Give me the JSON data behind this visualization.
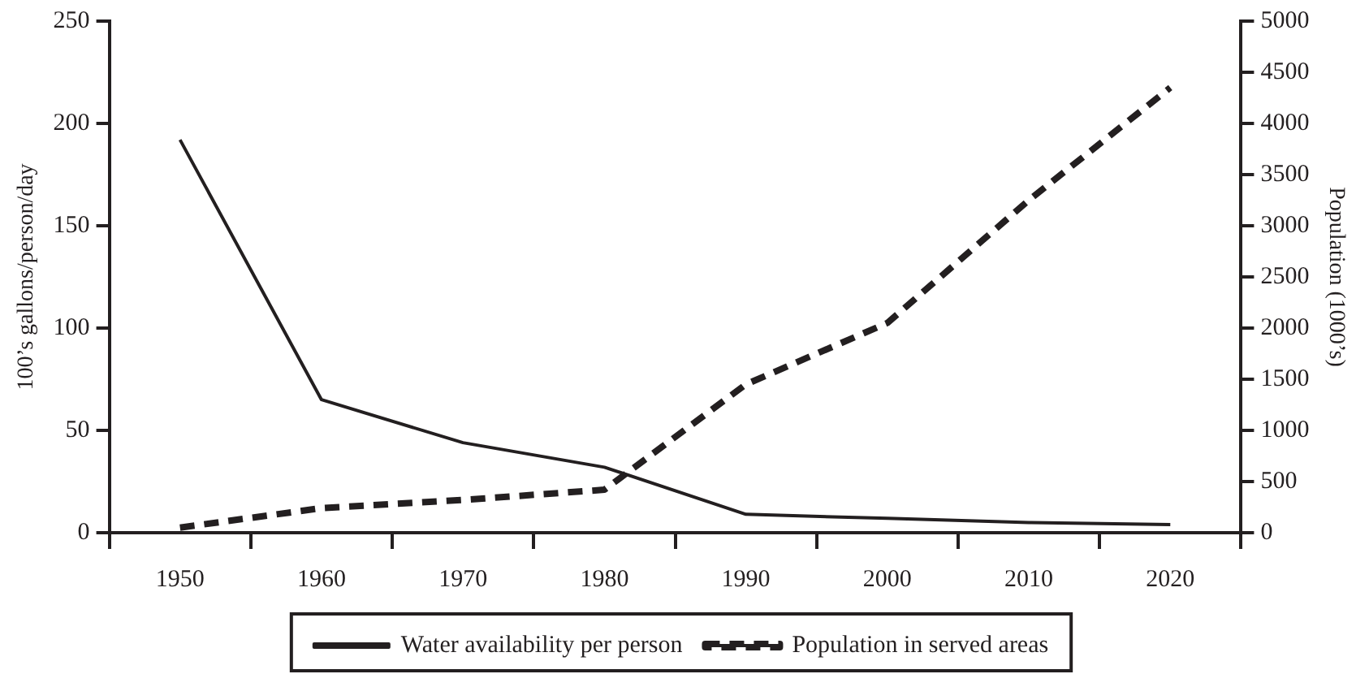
{
  "chart_data": {
    "type": "line",
    "categories": [
      "1950",
      "1960",
      "1970",
      "1980",
      "1990",
      "2000",
      "2010",
      "2020"
    ],
    "ylabel": "100’s gallons/person/day",
    "y2label": "Population (1000’s)",
    "ylim": [
      0,
      250
    ],
    "yticks": [
      0,
      50,
      100,
      150,
      200,
      250
    ],
    "y2lim": [
      0,
      5000
    ],
    "y2ticks": [
      0,
      500,
      1000,
      1500,
      2000,
      2500,
      3000,
      3500,
      4000,
      4500,
      5000
    ],
    "series": [
      {
        "name": "Water availability per person",
        "color": "#231f20",
        "values": [
          192,
          65,
          44,
          32,
          9,
          7,
          5,
          4
        ],
        "line_style": "solid"
      },
      {
        "name": "Population in served areas",
        "color": "#231f20",
        "values": [
          50,
          240,
          320,
          420,
          1450,
          2050,
          3250,
          4350
        ],
        "axis": "y2",
        "line_style": "dashed"
      }
    ],
    "grid": false,
    "legend": "bottom",
    "marker": "none"
  }
}
